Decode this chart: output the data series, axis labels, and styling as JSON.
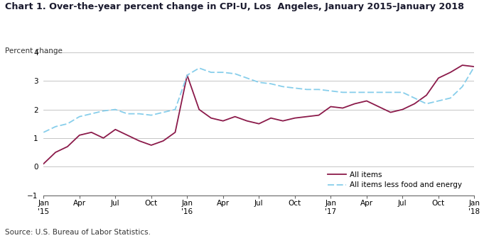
{
  "title": "Chart 1. Over-the-year percent change in CPI-U, Los  Angeles, January 2015–January 2018",
  "ylabel": "Percent change",
  "source": "Source: U.S. Bureau of Labor Statistics.",
  "ylim": [
    -1.0,
    4.0
  ],
  "yticks": [
    -1.0,
    0.0,
    1.0,
    2.0,
    3.0,
    4.0
  ],
  "all_items_color": "#8B1A4A",
  "all_items_less_color": "#87CEEB",
  "all_items_values": [
    0.1,
    0.5,
    0.7,
    1.1,
    1.2,
    1.0,
    1.3,
    1.1,
    0.9,
    0.75,
    0.9,
    1.2,
    3.2,
    2.0,
    1.7,
    1.6,
    1.75,
    1.6,
    1.5,
    1.7,
    1.6,
    1.7,
    1.75,
    1.8,
    2.1,
    2.05,
    2.2,
    2.3,
    2.1,
    1.9,
    2.0,
    2.2,
    2.5,
    3.1,
    3.3,
    3.55,
    3.5
  ],
  "less_values": [
    1.2,
    1.4,
    1.5,
    1.75,
    1.85,
    1.95,
    2.0,
    1.85,
    1.85,
    1.8,
    1.9,
    2.0,
    3.2,
    3.45,
    3.3,
    3.3,
    3.25,
    3.1,
    2.95,
    2.9,
    2.8,
    2.75,
    2.7,
    2.7,
    2.65,
    2.6,
    2.6,
    2.6,
    2.6,
    2.6,
    2.6,
    2.4,
    2.2,
    2.3,
    2.4,
    2.8,
    3.5
  ],
  "xtick_labels": [
    "Jan\n'15",
    "Apr",
    "Jul",
    "Oct",
    "Jan\n'16",
    "Apr",
    "Jul",
    "Oct",
    "Jan\n'17",
    "Apr",
    "Jul",
    "Oct",
    "Jan\n'18"
  ],
  "xtick_positions": [
    0,
    3,
    6,
    9,
    12,
    15,
    18,
    21,
    24,
    27,
    30,
    33,
    36
  ]
}
